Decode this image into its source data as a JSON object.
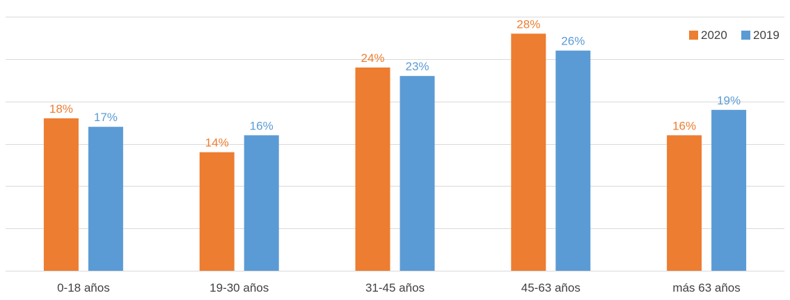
{
  "chart_data": {
    "type": "bar",
    "title": "",
    "xlabel": "",
    "ylabel": "",
    "categories": [
      "0-18 años",
      "19-30 años",
      "31-45 años",
      "45-63 años",
      "más 63 años"
    ],
    "series": [
      {
        "name": "2020",
        "color": "#ED7D31",
        "values": [
          18,
          14,
          24,
          28,
          16
        ],
        "labels": [
          "18%",
          "14%",
          "24%",
          "28%",
          "16%"
        ]
      },
      {
        "name": "2019",
        "color": "#5B9BD5",
        "values": [
          17,
          16,
          23,
          26,
          19
        ],
        "labels": [
          "17%",
          "16%",
          "23%",
          "26%",
          "19%"
        ]
      }
    ],
    "ylim": [
      0,
      30
    ],
    "yticks": [
      0,
      5,
      10,
      15,
      20,
      25,
      30
    ],
    "y_axis_labels_visible": false,
    "grid": true,
    "legend_position": "top-right"
  }
}
